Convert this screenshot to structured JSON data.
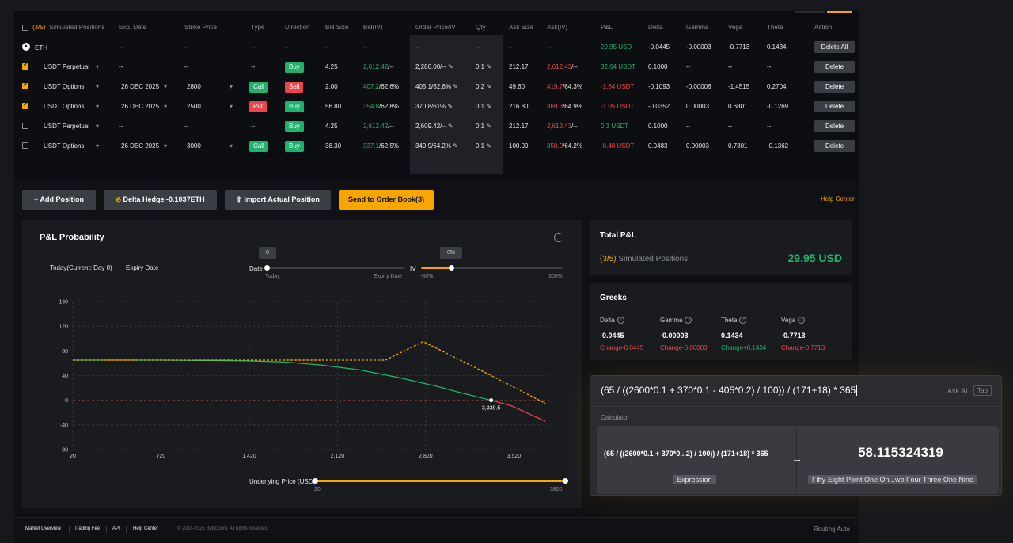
{
  "table": {
    "header": {
      "count": "(3/5)",
      "label": "Simulated Positions",
      "columns": [
        "Exp. Date",
        "Strike Price",
        "Type",
        "Direction",
        "Bid Size",
        "Bid(IV)",
        "Order Price/IV",
        "Qty",
        "Ask Size",
        "Ask(IV)",
        "P&L",
        "Delta",
        "Gamma",
        "Vega",
        "Theta",
        "Action"
      ]
    },
    "summary_row": {
      "asset": "ETH",
      "exp": "--",
      "strike": "--",
      "type": "--",
      "direction": "--",
      "bid_size": "--",
      "bid_iv": "--",
      "order_price": "--",
      "qty": "--",
      "ask_size": "--",
      "ask_iv": "--",
      "pnl": "29.95 USD",
      "delta": "-0.0445",
      "gamma": "-0.00003",
      "vega": "-0.7713",
      "theta": "0.1434",
      "action": "Delete All"
    },
    "rows": [
      {
        "checked": true,
        "product": "USDT Perpetual",
        "exp": "--",
        "strike": "--",
        "type": "--",
        "direction": "Buy",
        "bid_size": "4.25",
        "bid_price": "2,612.42",
        "bid_iv": "/--",
        "order_price": "2,286.00/--",
        "qty": "0.1",
        "ask_size": "212.17",
        "ask_price": "2,612.43",
        "ask_iv": "/--",
        "pnl": "32.64 USDT",
        "pnl_sign": "pos",
        "delta": "0.1000",
        "gamma": "--",
        "vega": "--",
        "theta": "--",
        "action": "Delete"
      },
      {
        "checked": true,
        "product": "USDT Options",
        "exp": "26 DEC 2025",
        "strike": "2800",
        "type": "Call",
        "direction": "Sell",
        "bid_size": "2.00",
        "bid_price": "407.2",
        "bid_iv": "/62.6%",
        "order_price": "405.1/62.6%",
        "qty": "0.2",
        "ask_size": "49.60",
        "ask_price": "419.7",
        "ask_iv": "/64.3%",
        "pnl": "-1.64 USDT",
        "pnl_sign": "neg",
        "delta": "-0.1093",
        "gamma": "-0.00006",
        "vega": "-1.4515",
        "theta": "0.2704",
        "action": "Delete"
      },
      {
        "checked": true,
        "product": "USDT Options",
        "exp": "26 DEC 2025",
        "strike": "2500",
        "type": "Put",
        "direction": "Buy",
        "bid_size": "56.80",
        "bid_price": "354.8",
        "bid_iv": "/62.8%",
        "order_price": "370.8/61%",
        "qty": "0.1",
        "ask_size": "216.80",
        "ask_price": "369.3",
        "ask_iv": "/64.9%",
        "pnl": "-1.05 USDT",
        "pnl_sign": "neg",
        "delta": "-0.0352",
        "gamma": "0.00003",
        "vega": "0.6801",
        "theta": "-0.1269",
        "action": "Delete"
      },
      {
        "checked": false,
        "product": "USDT Perpetual",
        "exp": "--",
        "strike": "--",
        "type": "--",
        "direction": "Buy",
        "bid_size": "4.25",
        "bid_price": "2,612.42",
        "bid_iv": "/--",
        "order_price": "2,609.42/--",
        "qty": "0.1",
        "ask_size": "212.17",
        "ask_price": "2,612.43",
        "ask_iv": "/--",
        "pnl": "0.3 USDT",
        "pnl_sign": "pos",
        "delta": "0.1000",
        "gamma": "--",
        "vega": "--",
        "theta": "--",
        "action": "Delete"
      },
      {
        "checked": false,
        "product": "USDT Options",
        "exp": "26 DEC 2025",
        "strike": "3000",
        "type": "Call",
        "direction": "Buy",
        "bid_size": "38.30",
        "bid_price": "337.1",
        "bid_iv": "/62.5%",
        "order_price": "349.9/64.2%",
        "qty": "0.1",
        "ask_size": "100.00",
        "ask_price": "350.0",
        "ask_iv": "/64.2%",
        "pnl": "-0.48 USDT",
        "pnl_sign": "neg",
        "delta": "0.0483",
        "gamma": "0.00003",
        "vega": "0.7301",
        "theta": "-0.1362",
        "action": "Delete"
      }
    ]
  },
  "actions": {
    "add_position": "Add Position",
    "delta_hedge": "Delta Hedge -0.1037ETH",
    "import_position": "Import Actual Position",
    "send_order_book": "Send to Order Book(3)",
    "help_center": "Help Center"
  },
  "pl_chart": {
    "title": "P&L Probability",
    "legend_today": "Today(Current: Day 0)",
    "legend_expiry": "Expiry Date",
    "date_slider": {
      "label": "Date",
      "tooltip": "0",
      "min_label": "Today",
      "max_label": "Expiry Date",
      "value": 0
    },
    "iv_slider": {
      "label": "IV",
      "tooltip": "0%",
      "min_label": "-80%",
      "max_label": "300%",
      "value": 0
    },
    "price_slider": {
      "label": "Underlying Price (USD)",
      "min_label": "20",
      "max_label": "3800"
    }
  },
  "chart_data": {
    "type": "line",
    "xlim": [
      20,
      3800
    ],
    "ylim": [
      -80,
      160
    ],
    "x_ticks": [
      20,
      720,
      1420,
      2120,
      2820,
      3520
    ],
    "x_tick_labels": [
      "20",
      "720",
      "1,420",
      "2,120",
      "2,820",
      "3,520"
    ],
    "y_ticks": [
      -80,
      -40,
      0,
      40,
      80,
      120,
      160
    ],
    "grid": true,
    "marker": {
      "x": 3339.5,
      "y": 0,
      "label": "3,339.5"
    },
    "current_price_line_x": 3339.5,
    "series": [
      {
        "name": "Today(Current: Day 0)",
        "color": "#20b26c",
        "style": "solid",
        "x": [
          20,
          700,
          1400,
          1700,
          2000,
          2300,
          2600,
          2900,
          3100,
          3339.5
        ],
        "y": [
          65,
          65,
          64,
          62,
          57,
          49,
          37,
          23,
          12,
          0
        ]
      },
      {
        "name": "Today(Current: Day 0)",
        "color": "#ef454a",
        "style": "solid",
        "x": [
          3339.5,
          3500,
          3770
        ],
        "y": [
          0,
          -9,
          -34
        ]
      },
      {
        "name": "Expiry Date",
        "color": "#f7a600",
        "style": "dashed",
        "x": [
          20,
          2500,
          2800,
          3340,
          3770
        ],
        "y": [
          65,
          65,
          95,
          40,
          -5
        ]
      }
    ]
  },
  "total_pl": {
    "title": "Total P&L",
    "count": "(3/5)",
    "label": "Simulated Positions",
    "value": "29.95 USD"
  },
  "greeks": {
    "title": "Greeks",
    "items": [
      {
        "label": "Delta",
        "value": "-0.0445",
        "change": "Change-0.0445",
        "sign": "neg"
      },
      {
        "label": "Gamma",
        "value": "-0.00003",
        "change": "Change-0.00003",
        "sign": "neg"
      },
      {
        "label": "Theta",
        "value": "0.1434",
        "change": "Change+0.1434",
        "sign": "pos"
      },
      {
        "label": "Vega",
        "value": "-0.7713",
        "change": "Change-0.7713",
        "sign": "neg"
      }
    ]
  },
  "calculator": {
    "input": "(65 / ((2600*0.1 + 370*0.1 - 405*0.2) / 100)) / (171+18) * 365",
    "ask_ai": "Ask AI",
    "tab_key": "Tab",
    "section": "Calculator",
    "expression": "(65 / ((2600*0.1 + 370*0...2) / 100)) / (171+18) * 365",
    "result": "58.115324319",
    "expression_chip": "Expression",
    "result_words": "Fifty-Eight Point One On...wo Four Three One Nine"
  },
  "footer": {
    "links": [
      "Market Overview",
      "Trading Fee",
      "API",
      "Help Center"
    ],
    "copyright": "© 2018-2025 Bybit.com. All rights reserved.",
    "routing": "Routing Auto"
  },
  "colors": {
    "accent": "#f7a600",
    "green": "#20b26c",
    "red": "#ef454a",
    "background": "#101114",
    "card": "#1a1b1f"
  }
}
